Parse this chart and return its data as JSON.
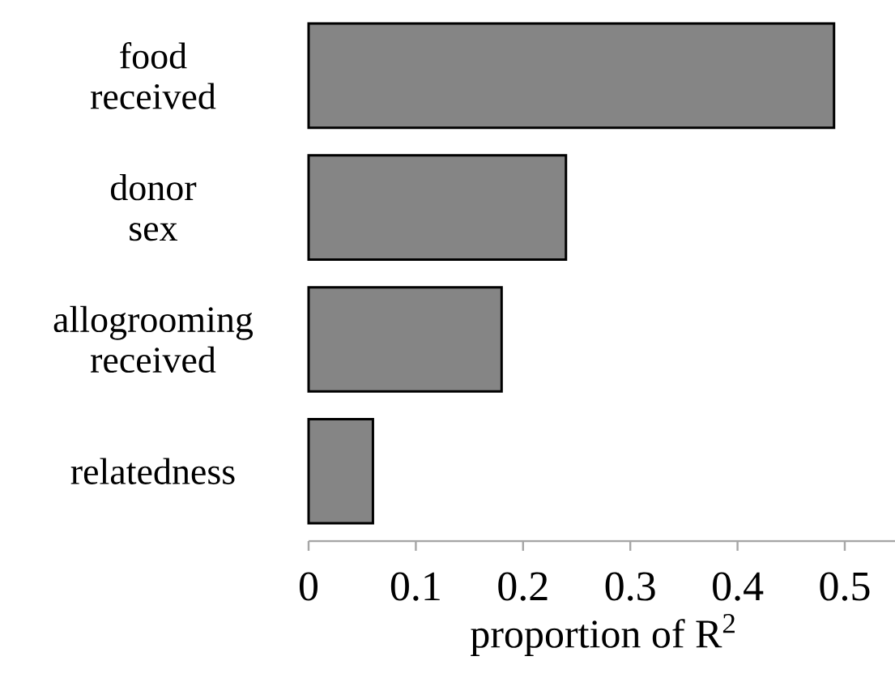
{
  "chart_data": {
    "type": "bar",
    "orientation": "horizontal",
    "categories": [
      "food received",
      "donor sex",
      "allogrooming received",
      "relatedness"
    ],
    "values": [
      0.49,
      0.24,
      0.18,
      0.06
    ],
    "color": "#858585",
    "xlim": [
      0,
      0.55
    ],
    "xticks": [
      0,
      0.1,
      0.2,
      0.3,
      0.4,
      0.5
    ],
    "xlabel": "proportion of R$^{2}$"
  }
}
